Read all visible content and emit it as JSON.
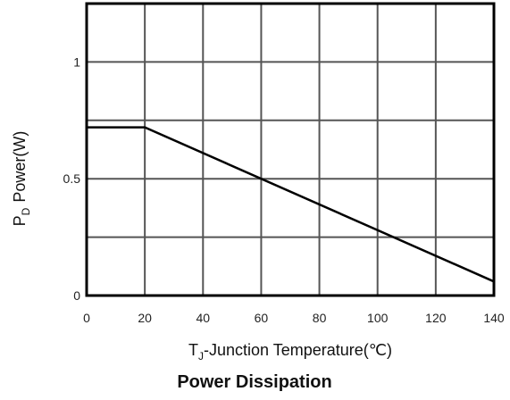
{
  "chart_data": {
    "type": "line",
    "title": "Power Dissipation",
    "xlabel": {
      "main": "T",
      "sub": "J",
      "rest": "-Junction Temperature(℃)"
    },
    "ylabel": {
      "main": "P",
      "sub": "D",
      "rest": "Power(W)"
    },
    "xlim": [
      0,
      140
    ],
    "ylim": [
      0,
      1.25
    ],
    "xticks": [
      0,
      20,
      40,
      60,
      80,
      100,
      120,
      140
    ],
    "xtick_labels": [
      "0",
      "20",
      "40",
      "60",
      "80",
      "100",
      "120",
      "140"
    ],
    "yticks": [
      0,
      0.5,
      1
    ],
    "ytick_labels": [
      "0",
      "0.5",
      "1"
    ],
    "x_gridlines": [
      20,
      40,
      60,
      80,
      100,
      120
    ],
    "y_gridlines": [
      0.25,
      0.5,
      0.75,
      1
    ],
    "grid": true,
    "series": [
      {
        "x": [
          0,
          20,
          140
        ],
        "y": [
          0.72,
          0.72,
          0.06
        ]
      }
    ],
    "line_color": "#000000",
    "grid_color": "#555555"
  }
}
